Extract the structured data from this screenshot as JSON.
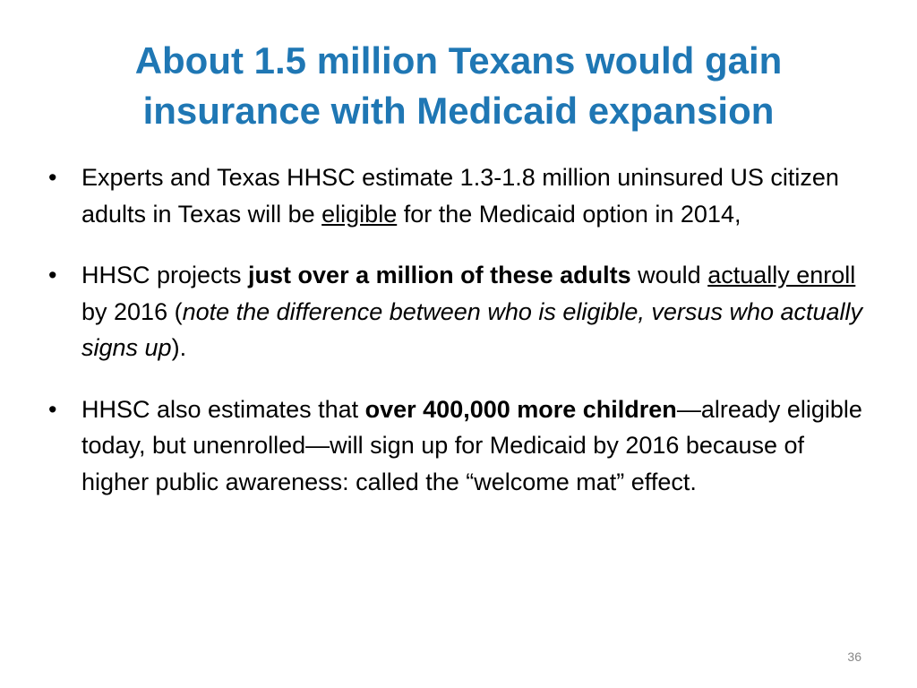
{
  "slide": {
    "title_lines": [
      "About 1.5 million Texans would gain",
      "insurance with Medicaid expansion"
    ],
    "accent_color": "#1f77b4",
    "bullets": [
      {
        "segments": [
          {
            "text": "Experts and Texas HHSC estimate 1.3-1.8 million uninsured US citizen adults in Texas will be ",
            "style": ""
          },
          {
            "text": "eligible",
            "style": "u"
          },
          {
            "text": " for the Medicaid option in 2014,",
            "style": ""
          }
        ]
      },
      {
        "segments": [
          {
            "text": "HHSC projects ",
            "style": ""
          },
          {
            "text": "just over a million of these adults",
            "style": "b"
          },
          {
            "text": " would ",
            "style": ""
          },
          {
            "text": "actually enroll",
            "style": "u"
          },
          {
            "text": " by 2016 (",
            "style": ""
          },
          {
            "text": "note the difference between who is eligible, versus who actually signs up",
            "style": "i"
          },
          {
            "text": ").",
            "style": ""
          }
        ]
      },
      {
        "segments": [
          {
            "text": "HHSC also estimates that ",
            "style": ""
          },
          {
            "text": "over 400,000 more children",
            "style": "b"
          },
          {
            "text": "—already eligible today, but unenrolled—will sign up for Medicaid by 2016 because of higher public awareness: called the “welcome mat” effect.",
            "style": ""
          }
        ]
      }
    ],
    "page_number": "36"
  }
}
